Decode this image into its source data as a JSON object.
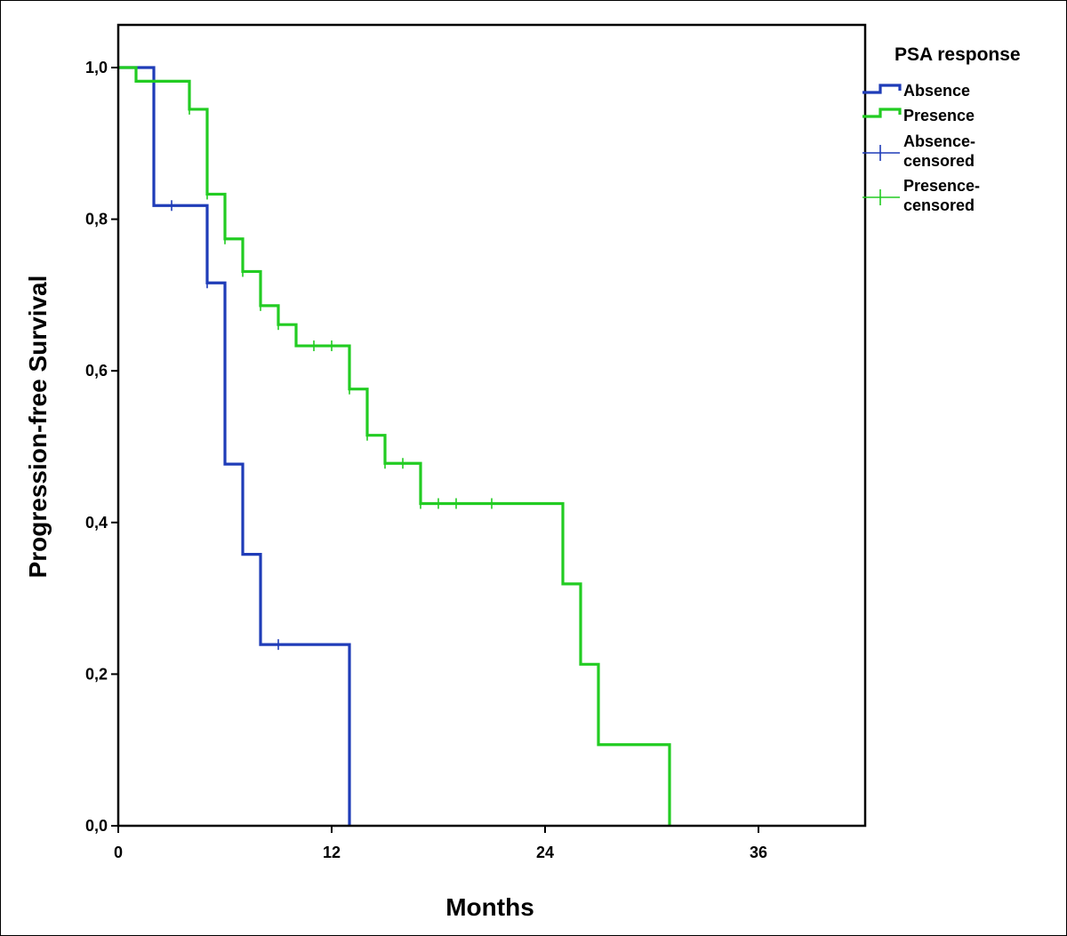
{
  "chart_data": {
    "type": "line",
    "subtype": "kaplan-meier",
    "title": "",
    "xlabel": "Months",
    "ylabel": "Progression-free Survival",
    "xlim": [
      0,
      42
    ],
    "ylim": [
      0,
      1.05
    ],
    "xticks": [
      0,
      12,
      24,
      36
    ],
    "xtick_labels": [
      "0",
      "12",
      "24",
      "36"
    ],
    "yticks": [
      0,
      0.2,
      0.4,
      0.6,
      0.8,
      1.0
    ],
    "ytick_labels": [
      "0,0",
      "0,2",
      "0,4",
      "0,6",
      "0,8",
      "1,0"
    ],
    "grid": false,
    "legend": {
      "title": "PSA response",
      "placement": "right",
      "entries": [
        {
          "label": "Absence",
          "kind": "line",
          "color": "#1f3cb8"
        },
        {
          "label": "Presence",
          "kind": "line",
          "color": "#22cc22"
        },
        {
          "label_lines": [
            "Absence-",
            "censored"
          ],
          "kind": "censor",
          "color": "#1f3cb8"
        },
        {
          "label_lines": [
            "Presence-",
            "censored"
          ],
          "kind": "censor",
          "color": "#22cc22"
        }
      ]
    },
    "series": [
      {
        "name": "Absence",
        "color": "#1f3cb8",
        "steps": [
          [
            0,
            1.0
          ],
          [
            2,
            0.818
          ],
          [
            5,
            0.716
          ],
          [
            6,
            0.477
          ],
          [
            7,
            0.358
          ],
          [
            8,
            0.239
          ],
          [
            13,
            0.0
          ]
        ],
        "end_x": 13,
        "censored": [
          [
            3,
            0.818
          ],
          [
            5,
            0.716
          ],
          [
            9,
            0.239
          ]
        ]
      },
      {
        "name": "Presence",
        "color": "#22cc22",
        "steps": [
          [
            0,
            1.0
          ],
          [
            1,
            0.982
          ],
          [
            4,
            0.945
          ],
          [
            5,
            0.833
          ],
          [
            6,
            0.774
          ],
          [
            7,
            0.731
          ],
          [
            8,
            0.686
          ],
          [
            9,
            0.661
          ],
          [
            10,
            0.633
          ],
          [
            13,
            0.576
          ],
          [
            14,
            0.515
          ],
          [
            15,
            0.478
          ],
          [
            17,
            0.425
          ],
          [
            25,
            0.319
          ],
          [
            26,
            0.213
          ],
          [
            27,
            0.107
          ],
          [
            31,
            0.0
          ]
        ],
        "end_x": 31,
        "censored": [
          [
            4,
            0.945
          ],
          [
            5,
            0.833
          ],
          [
            6,
            0.774
          ],
          [
            7,
            0.731
          ],
          [
            8,
            0.686
          ],
          [
            9,
            0.661
          ],
          [
            11,
            0.633
          ],
          [
            12,
            0.633
          ],
          [
            13,
            0.576
          ],
          [
            14,
            0.515
          ],
          [
            15,
            0.478
          ],
          [
            16,
            0.478
          ],
          [
            17,
            0.425
          ],
          [
            18,
            0.425
          ],
          [
            19,
            0.425
          ],
          [
            21,
            0.425
          ]
        ]
      }
    ]
  }
}
